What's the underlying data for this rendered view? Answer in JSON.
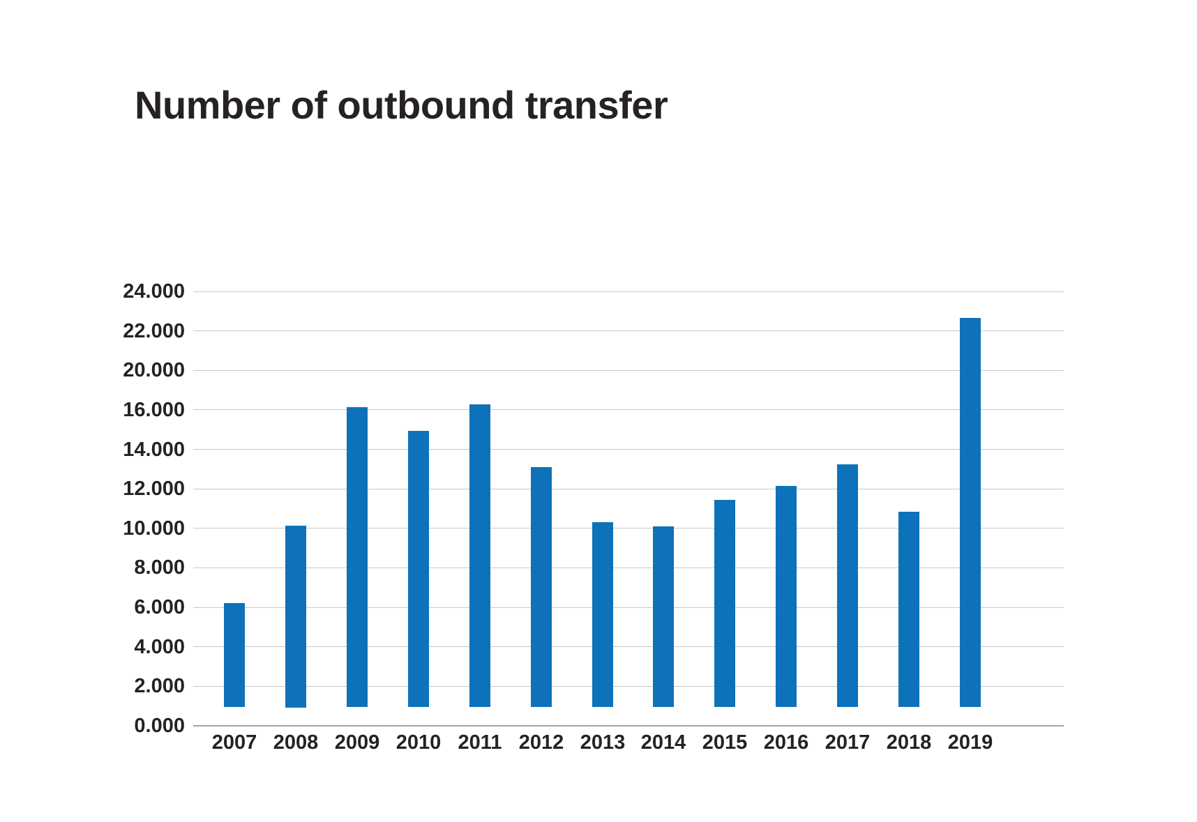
{
  "header": {
    "title": "Number of outbound transfer"
  },
  "chart_data": {
    "type": "bar",
    "title": "Number of outbound transfer",
    "categories": [
      "2007",
      "2008",
      "2009",
      "2010",
      "2011",
      "2012",
      "2013",
      "2014",
      "2015",
      "2016",
      "2017",
      "2018",
      "2019"
    ],
    "values": [
      6200,
      10150,
      16300,
      14950,
      16550,
      13100,
      10300,
      10100,
      11450,
      12150,
      13250,
      10850,
      22650
    ],
    "xlabel": "",
    "ylabel": "",
    "bar_color": "#0d72b9",
    "bar_base_value": 950,
    "grid": true,
    "legend": false,
    "y_axis": {
      "tick_labels_top_to_bottom": [
        "24.000",
        "22.000",
        "20.000",
        "16.000",
        "14.000",
        "12.000",
        "10.000",
        "8.000",
        "6.000",
        "4.000",
        "2.000",
        "0.000"
      ],
      "tick_values_top_to_bottom": [
        24000,
        22000,
        20000,
        16000,
        14000,
        12000,
        10000,
        8000,
        6000,
        4000,
        2000,
        0
      ],
      "note": "Ticks are evenly spaced but the 18.000 step is absent between 20.000 and 16.000 (broken axis); bars float above the 0.000 baseline starting near the 1.000 level.",
      "number_format": "European thousands (dot separator)"
    }
  }
}
